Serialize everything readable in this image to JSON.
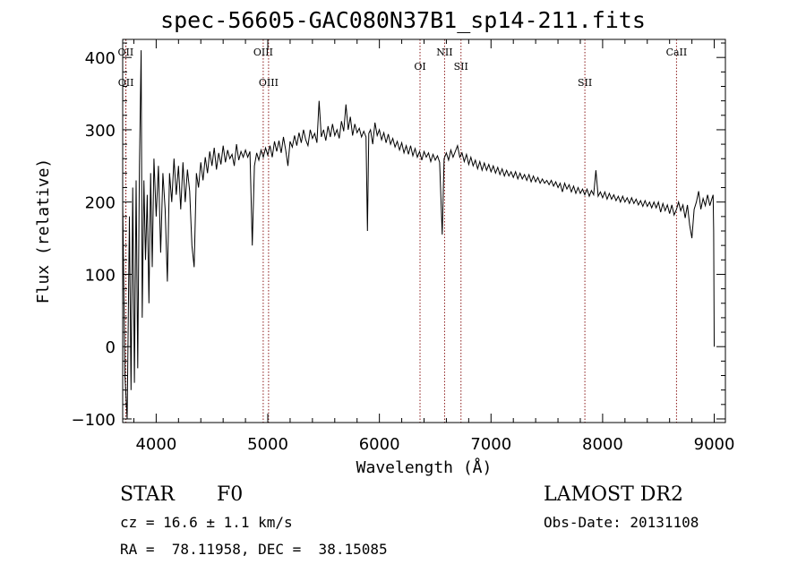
{
  "chart_data": {
    "type": "line",
    "title": "spec-56605-GAC080N37B1_sp14-211.fits",
    "xlabel": "Wavelength (Å)",
    "ylabel": "Flux (relative)",
    "xlim": [
      3700,
      9100
    ],
    "ylim": [
      -105,
      425
    ],
    "xticks": [
      "4000",
      "5000",
      "6000",
      "7000",
      "8000",
      "9000"
    ],
    "yticks": [
      "−100",
      "0",
      "100",
      "200",
      "300",
      "400"
    ],
    "xtick_values": [
      4000,
      5000,
      6000,
      7000,
      8000,
      9000
    ],
    "ytick_values": [
      -100,
      0,
      100,
      200,
      300,
      400
    ],
    "line_color": "#000000",
    "marker_color": "#8b1a1a",
    "spectral_lines": [
      {
        "label": "OII",
        "x": 3727,
        "row": "top"
      },
      {
        "label": "OII",
        "x": 3729,
        "row": "bottom"
      },
      {
        "label": "OIII",
        "x": 4959,
        "row": "top"
      },
      {
        "label": "OIII",
        "x": 5007,
        "row": "bottom"
      },
      {
        "label": "OI",
        "x": 6364,
        "row": "mid"
      },
      {
        "label": "NII",
        "x": 6584,
        "row": "top"
      },
      {
        "label": "SII",
        "x": 6731,
        "row": "mid"
      },
      {
        "label": "SII",
        "x": 7841,
        "row": "bottom"
      },
      {
        "label": "CaII",
        "x": 8662,
        "row": "top"
      }
    ],
    "spectrum": [
      [
        3700,
        200
      ],
      [
        3720,
        -40
      ],
      [
        3740,
        -100
      ],
      [
        3760,
        180
      ],
      [
        3775,
        -60
      ],
      [
        3790,
        220
      ],
      [
        3805,
        -50
      ],
      [
        3820,
        230
      ],
      [
        3835,
        -30
      ],
      [
        3850,
        250
      ],
      [
        3865,
        410
      ],
      [
        3875,
        40
      ],
      [
        3890,
        230
      ],
      [
        3905,
        120
      ],
      [
        3920,
        210
      ],
      [
        3935,
        60
      ],
      [
        3950,
        240
      ],
      [
        3965,
        110
      ],
      [
        3980,
        260
      ],
      [
        4000,
        180
      ],
      [
        4020,
        250
      ],
      [
        4040,
        130
      ],
      [
        4060,
        240
      ],
      [
        4080,
        190
      ],
      [
        4100,
        90
      ],
      [
        4120,
        240
      ],
      [
        4140,
        200
      ],
      [
        4160,
        260
      ],
      [
        4180,
        210
      ],
      [
        4200,
        250
      ],
      [
        4220,
        190
      ],
      [
        4240,
        255
      ],
      [
        4260,
        200
      ],
      [
        4280,
        245
      ],
      [
        4300,
        215
      ],
      [
        4320,
        140
      ],
      [
        4340,
        110
      ],
      [
        4360,
        240
      ],
      [
        4380,
        220
      ],
      [
        4400,
        255
      ],
      [
        4420,
        230
      ],
      [
        4440,
        262
      ],
      [
        4460,
        240
      ],
      [
        4480,
        270
      ],
      [
        4500,
        250
      ],
      [
        4520,
        275
      ],
      [
        4540,
        245
      ],
      [
        4560,
        268
      ],
      [
        4580,
        252
      ],
      [
        4600,
        278
      ],
      [
        4620,
        255
      ],
      [
        4640,
        272
      ],
      [
        4660,
        260
      ],
      [
        4680,
        266
      ],
      [
        4700,
        250
      ],
      [
        4720,
        280
      ],
      [
        4740,
        258
      ],
      [
        4760,
        270
      ],
      [
        4780,
        262
      ],
      [
        4800,
        272
      ],
      [
        4820,
        262
      ],
      [
        4840,
        270
      ],
      [
        4861,
        140
      ],
      [
        4880,
        250
      ],
      [
        4900,
        268
      ],
      [
        4920,
        258
      ],
      [
        4940,
        272
      ],
      [
        4960,
        262
      ],
      [
        4980,
        275
      ],
      [
        5000,
        265
      ],
      [
        5020,
        278
      ],
      [
        5040,
        262
      ],
      [
        5060,
        284
      ],
      [
        5080,
        270
      ],
      [
        5100,
        285
      ],
      [
        5120,
        268
      ],
      [
        5140,
        290
      ],
      [
        5160,
        272
      ],
      [
        5180,
        250
      ],
      [
        5200,
        284
      ],
      [
        5220,
        276
      ],
      [
        5240,
        292
      ],
      [
        5260,
        278
      ],
      [
        5280,
        296
      ],
      [
        5300,
        282
      ],
      [
        5320,
        300
      ],
      [
        5340,
        286
      ],
      [
        5360,
        278
      ],
      [
        5380,
        300
      ],
      [
        5400,
        288
      ],
      [
        5420,
        295
      ],
      [
        5440,
        282
      ],
      [
        5460,
        340
      ],
      [
        5480,
        290
      ],
      [
        5500,
        300
      ],
      [
        5520,
        285
      ],
      [
        5540,
        305
      ],
      [
        5560,
        290
      ],
      [
        5580,
        308
      ],
      [
        5600,
        292
      ],
      [
        5620,
        300
      ],
      [
        5640,
        288
      ],
      [
        5660,
        312
      ],
      [
        5680,
        298
      ],
      [
        5700,
        335
      ],
      [
        5720,
        300
      ],
      [
        5740,
        318
      ],
      [
        5760,
        292
      ],
      [
        5780,
        308
      ],
      [
        5800,
        296
      ],
      [
        5820,
        302
      ],
      [
        5840,
        290
      ],
      [
        5860,
        298
      ],
      [
        5880,
        290
      ],
      [
        5893,
        160
      ],
      [
        5905,
        295
      ],
      [
        5920,
        300
      ],
      [
        5940,
        280
      ],
      [
        5960,
        310
      ],
      [
        5980,
        292
      ],
      [
        6000,
        300
      ],
      [
        6020,
        286
      ],
      [
        6040,
        296
      ],
      [
        6060,
        282
      ],
      [
        6080,
        294
      ],
      [
        6100,
        280
      ],
      [
        6120,
        288
      ],
      [
        6140,
        276
      ],
      [
        6160,
        284
      ],
      [
        6180,
        272
      ],
      [
        6200,
        282
      ],
      [
        6220,
        268
      ],
      [
        6240,
        278
      ],
      [
        6260,
        266
      ],
      [
        6280,
        278
      ],
      [
        6300,
        264
      ],
      [
        6320,
        274
      ],
      [
        6340,
        262
      ],
      [
        6360,
        270
      ],
      [
        6380,
        258
      ],
      [
        6400,
        270
      ],
      [
        6420,
        262
      ],
      [
        6440,
        268
      ],
      [
        6460,
        256
      ],
      [
        6480,
        266
      ],
      [
        6500,
        258
      ],
      [
        6520,
        264
      ],
      [
        6540,
        255
      ],
      [
        6563,
        155
      ],
      [
        6580,
        260
      ],
      [
        6600,
        268
      ],
      [
        6620,
        258
      ],
      [
        6640,
        272
      ],
      [
        6660,
        262
      ],
      [
        6680,
        270
      ],
      [
        6700,
        278
      ],
      [
        6720,
        262
      ],
      [
        6740,
        268
      ],
      [
        6760,
        256
      ],
      [
        6780,
        266
      ],
      [
        6800,
        252
      ],
      [
        6820,
        262
      ],
      [
        6840,
        250
      ],
      [
        6860,
        258
      ],
      [
        6880,
        246
      ],
      [
        6900,
        256
      ],
      [
        6920,
        244
      ],
      [
        6940,
        254
      ],
      [
        6960,
        244
      ],
      [
        6980,
        252
      ],
      [
        7000,
        242
      ],
      [
        7020,
        250
      ],
      [
        7040,
        240
      ],
      [
        7060,
        248
      ],
      [
        7080,
        238
      ],
      [
        7100,
        246
      ],
      [
        7120,
        236
      ],
      [
        7140,
        244
      ],
      [
        7160,
        236
      ],
      [
        7180,
        242
      ],
      [
        7200,
        234
      ],
      [
        7220,
        242
      ],
      [
        7240,
        232
      ],
      [
        7260,
        240
      ],
      [
        7280,
        232
      ],
      [
        7300,
        238
      ],
      [
        7320,
        230
      ],
      [
        7340,
        238
      ],
      [
        7360,
        228
      ],
      [
        7380,
        236
      ],
      [
        7400,
        228
      ],
      [
        7420,
        234
      ],
      [
        7440,
        226
      ],
      [
        7460,
        232
      ],
      [
        7480,
        226
      ],
      [
        7500,
        230
      ],
      [
        7520,
        224
      ],
      [
        7540,
        230
      ],
      [
        7560,
        222
      ],
      [
        7580,
        228
      ],
      [
        7600,
        220
      ],
      [
        7620,
        226
      ],
      [
        7640,
        214
      ],
      [
        7660,
        226
      ],
      [
        7680,
        218
      ],
      [
        7700,
        224
      ],
      [
        7720,
        214
      ],
      [
        7740,
        222
      ],
      [
        7760,
        212
      ],
      [
        7780,
        220
      ],
      [
        7800,
        212
      ],
      [
        7820,
        218
      ],
      [
        7840,
        210
      ],
      [
        7860,
        218
      ],
      [
        7880,
        208
      ],
      [
        7900,
        216
      ],
      [
        7920,
        210
      ],
      [
        7940,
        244
      ],
      [
        7960,
        208
      ],
      [
        7980,
        214
      ],
      [
        8000,
        206
      ],
      [
        8020,
        214
      ],
      [
        8040,
        204
      ],
      [
        8060,
        212
      ],
      [
        8080,
        204
      ],
      [
        8100,
        210
      ],
      [
        8120,
        202
      ],
      [
        8140,
        208
      ],
      [
        8160,
        200
      ],
      [
        8180,
        208
      ],
      [
        8200,
        200
      ],
      [
        8220,
        206
      ],
      [
        8240,
        198
      ],
      [
        8260,
        206
      ],
      [
        8280,
        198
      ],
      [
        8300,
        204
      ],
      [
        8320,
        196
      ],
      [
        8340,
        202
      ],
      [
        8360,
        194
      ],
      [
        8380,
        202
      ],
      [
        8400,
        194
      ],
      [
        8420,
        200
      ],
      [
        8440,
        192
      ],
      [
        8460,
        200
      ],
      [
        8480,
        192
      ],
      [
        8500,
        200
      ],
      [
        8520,
        186
      ],
      [
        8540,
        198
      ],
      [
        8560,
        188
      ],
      [
        8580,
        196
      ],
      [
        8600,
        184
      ],
      [
        8620,
        196
      ],
      [
        8640,
        182
      ],
      [
        8662,
        190
      ],
      [
        8680,
        200
      ],
      [
        8700,
        188
      ],
      [
        8720,
        196
      ],
      [
        8740,
        178
      ],
      [
        8760,
        196
      ],
      [
        8780,
        168
      ],
      [
        8800,
        150
      ],
      [
        8820,
        190
      ],
      [
        8840,
        200
      ],
      [
        8860,
        215
      ],
      [
        8880,
        190
      ],
      [
        8900,
        205
      ],
      [
        8920,
        195
      ],
      [
        8940,
        210
      ],
      [
        8960,
        195
      ],
      [
        8980,
        205
      ],
      [
        8990,
        210
      ],
      [
        8995,
        160
      ],
      [
        9000,
        0
      ]
    ]
  },
  "footer": {
    "object_class": "STAR",
    "subclass": "F0",
    "survey": "LAMOST DR2",
    "cz": "cz = 16.6 ± 1.1 km/s",
    "obs_date": "Obs-Date: 20131108",
    "coords": "RA =  78.11958, DEC =  38.15085"
  }
}
